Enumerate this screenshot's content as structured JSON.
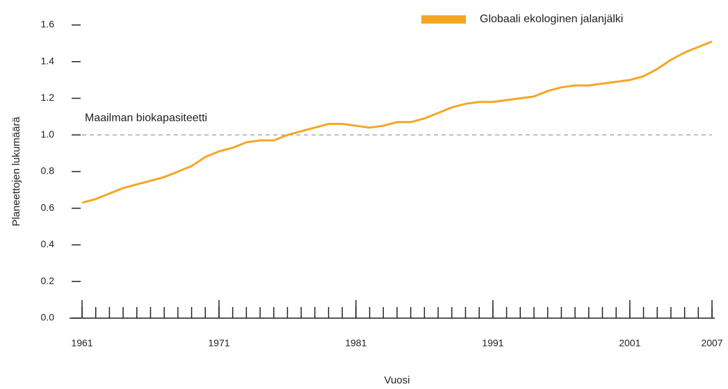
{
  "chart_data": {
    "type": "line",
    "x": [
      1961,
      1962,
      1963,
      1964,
      1965,
      1966,
      1967,
      1968,
      1969,
      1970,
      1971,
      1972,
      1973,
      1974,
      1975,
      1976,
      1977,
      1978,
      1979,
      1980,
      1981,
      1982,
      1983,
      1984,
      1985,
      1986,
      1987,
      1988,
      1989,
      1990,
      1991,
      1992,
      1993,
      1994,
      1995,
      1996,
      1997,
      1998,
      1999,
      2000,
      2001,
      2002,
      2003,
      2004,
      2005,
      2006,
      2007
    ],
    "series": [
      {
        "name": "Globaali ekologinen jalanjälki",
        "color": "#f5a623",
        "values": [
          0.63,
          0.65,
          0.68,
          0.71,
          0.73,
          0.75,
          0.77,
          0.8,
          0.83,
          0.88,
          0.91,
          0.93,
          0.96,
          0.97,
          0.97,
          1.0,
          1.02,
          1.04,
          1.06,
          1.06,
          1.05,
          1.04,
          1.05,
          1.07,
          1.07,
          1.09,
          1.12,
          1.15,
          1.17,
          1.18,
          1.18,
          1.19,
          1.2,
          1.21,
          1.24,
          1.26,
          1.27,
          1.27,
          1.28,
          1.29,
          1.3,
          1.32,
          1.36,
          1.41,
          1.45,
          1.48,
          1.51
        ]
      }
    ],
    "xlim": [
      1961,
      2007
    ],
    "xticks": [
      1961,
      1971,
      1981,
      1991,
      2001,
      2007
    ],
    "ylim": [
      0,
      1.6
    ],
    "yticks": [
      {
        "value": 0,
        "label": "0.0"
      },
      0.2,
      0.4,
      0.6,
      0.8,
      {
        "value": 1,
        "label": "1.0"
      },
      1.2,
      1.4,
      1.6
    ],
    "x_label": "Vuosi",
    "y_label": "Planeettojen lukumäärä",
    "reference_line": {
      "text": "Maailman biokapasiteetti",
      "value": 1
    },
    "legend": "top-right"
  }
}
